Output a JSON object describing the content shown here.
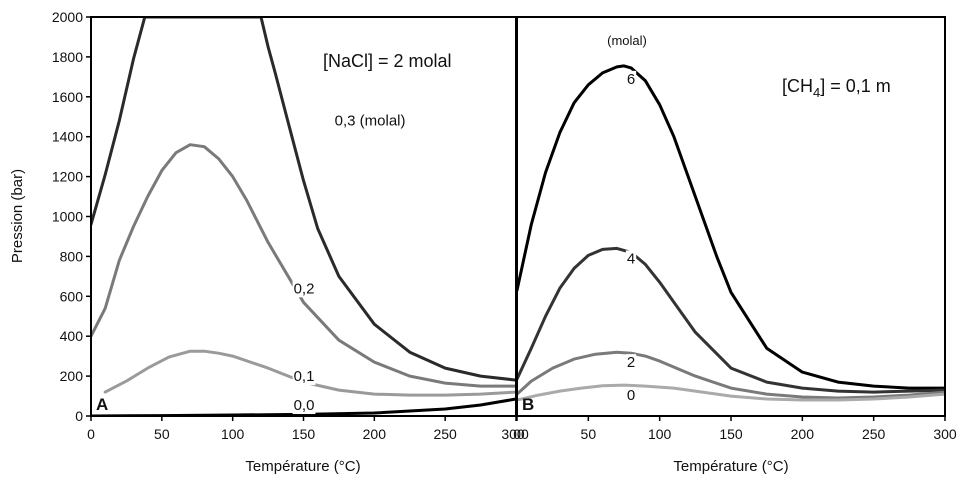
{
  "chart_data": [
    {
      "type": "line",
      "panel": "A",
      "ylabel": "Pression (bar)",
      "xlabel": "Température (°C)",
      "xlim": [
        0,
        300
      ],
      "ylim": [
        0,
        2000
      ],
      "xticks": [
        "0",
        "50",
        "100",
        "150",
        "200",
        "250",
        "300"
      ],
      "yticks": [
        "0",
        "200",
        "400",
        "600",
        "800",
        "1000",
        "1200",
        "1400",
        "1600",
        "1800",
        "2000"
      ],
      "annotation": "[NaCl] = 2 molal",
      "grid": false,
      "series": [
        {
          "label": "0,3 (molal)",
          "color": "#2a2a2a",
          "x": [
            0,
            10,
            20,
            30,
            38,
            40,
            120,
            125,
            130,
            140,
            150,
            160,
            175,
            200,
            225,
            250,
            275,
            300
          ],
          "y": [
            960,
            1210,
            1480,
            1790,
            2000,
            2000,
            2000,
            1850,
            1720,
            1450,
            1180,
            940,
            700,
            460,
            320,
            240,
            200,
            180
          ]
        },
        {
          "label": "0,2",
          "color": "#7a7a7a",
          "x": [
            0,
            10,
            20,
            30,
            40,
            50,
            60,
            70,
            80,
            90,
            100,
            110,
            125,
            150,
            175,
            200,
            225,
            250,
            275,
            300
          ],
          "y": [
            400,
            540,
            780,
            950,
            1100,
            1230,
            1320,
            1360,
            1350,
            1290,
            1200,
            1080,
            870,
            570,
            380,
            270,
            200,
            165,
            150,
            150
          ]
        },
        {
          "label": "0,1",
          "color": "#9a9a9a",
          "x": [
            10,
            25,
            40,
            55,
            70,
            80,
            90,
            100,
            125,
            150,
            175,
            200,
            225,
            250,
            275,
            300
          ],
          "y": [
            120,
            175,
            240,
            295,
            325,
            325,
            315,
            300,
            240,
            170,
            130,
            110,
            105,
            105,
            110,
            120
          ]
        },
        {
          "label": "0,0",
          "color": "#000000",
          "x": [
            0,
            50,
            100,
            150,
            200,
            250,
            275,
            300
          ],
          "y": [
            0,
            2,
            5,
            8,
            15,
            35,
            55,
            85
          ]
        }
      ]
    },
    {
      "type": "line",
      "panel": "B",
      "xlabel": "Température (°C)",
      "xlim": [
        0,
        300
      ],
      "ylim": [
        0,
        2000
      ],
      "xticks": [
        "00",
        "50",
        "100",
        "150",
        "200",
        "250",
        "300"
      ],
      "annotation_main": "[CH",
      "annotation_sub": "4",
      "annotation_tail": "] = 0,1 m",
      "unit_label": "(molal)",
      "grid": false,
      "series": [
        {
          "label": "6",
          "color": "#000000",
          "x": [
            0,
            10,
            20,
            30,
            40,
            50,
            60,
            70,
            75,
            80,
            90,
            100,
            110,
            125,
            140,
            150,
            175,
            200,
            225,
            250,
            275,
            300
          ],
          "y": [
            630,
            960,
            1220,
            1420,
            1570,
            1660,
            1720,
            1750,
            1755,
            1745,
            1680,
            1560,
            1400,
            1100,
            800,
            620,
            340,
            220,
            170,
            150,
            140,
            140
          ]
        },
        {
          "label": "4",
          "color": "#333333",
          "x": [
            0,
            10,
            20,
            30,
            40,
            50,
            60,
            70,
            80,
            90,
            100,
            110,
            125,
            150,
            175,
            200,
            225,
            250,
            275,
            300
          ],
          "y": [
            185,
            340,
            500,
            640,
            740,
            805,
            835,
            840,
            820,
            760,
            670,
            570,
            420,
            240,
            170,
            140,
            125,
            120,
            125,
            130
          ]
        },
        {
          "label": "2",
          "color": "#7a7a7a",
          "x": [
            0,
            10,
            25,
            40,
            55,
            70,
            80,
            90,
            100,
            125,
            150,
            175,
            200,
            225,
            250,
            275,
            300
          ],
          "y": [
            110,
            175,
            240,
            285,
            310,
            320,
            315,
            300,
            275,
            200,
            140,
            110,
            95,
            90,
            95,
            105,
            120
          ]
        },
        {
          "label": "0",
          "color": "#aaaaaa",
          "x": [
            0,
            15,
            30,
            45,
            60,
            75,
            90,
            110,
            125,
            150,
            175,
            200,
            225,
            250,
            275,
            300
          ],
          "y": [
            80,
            105,
            125,
            140,
            152,
            155,
            150,
            140,
            125,
            100,
            85,
            80,
            80,
            85,
            95,
            110
          ]
        }
      ]
    }
  ]
}
